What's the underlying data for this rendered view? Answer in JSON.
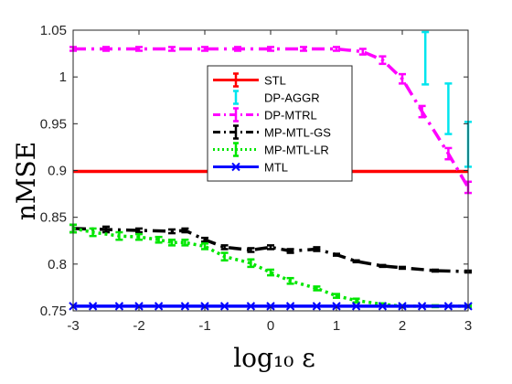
{
  "chart_data": {
    "type": "line",
    "title": "",
    "xlabel": "log₁₀ ε",
    "ylabel": "nMSE",
    "xlim": [
      -3,
      3
    ],
    "ylim": [
      0.75,
      1.05
    ],
    "xticks": [
      "-3",
      "-2",
      "-1",
      "0",
      "1",
      "2",
      "3"
    ],
    "yticks": [
      "0.75",
      "0.8",
      "0.85",
      "0.9",
      "0.95",
      "1",
      "1.05"
    ],
    "legend_position": "center",
    "grid": false,
    "series": [
      {
        "name": "STL",
        "color": "#ff0000",
        "dash": "solid",
        "marker": "none",
        "points": [
          [
            -3,
            0.899
          ],
          [
            3,
            0.899
          ]
        ]
      },
      {
        "name": "DP-AGGR",
        "color": "#00e5ee",
        "dash": "none",
        "marker": "errorbar",
        "points": [
          [
            2.35,
            1.02
          ],
          [
            2.7,
            0.966
          ],
          [
            3.0,
            0.928
          ]
        ],
        "err": [
          0.028,
          0.027,
          0.024
        ]
      },
      {
        "name": "DP-MTRL",
        "color": "#ff00ff",
        "dash": "dashdot",
        "marker": "errorbar",
        "points": [
          [
            -3,
            1.03
          ],
          [
            -2.5,
            1.03
          ],
          [
            -2,
            1.03
          ],
          [
            -1.5,
            1.03
          ],
          [
            -1,
            1.03
          ],
          [
            -0.5,
            1.03
          ],
          [
            0,
            1.03
          ],
          [
            0.5,
            1.03
          ],
          [
            1.0,
            1.03
          ],
          [
            1.4,
            1.027
          ],
          [
            1.7,
            1.018
          ],
          [
            2.0,
            0.998
          ],
          [
            2.3,
            0.963
          ],
          [
            2.7,
            0.918
          ],
          [
            3.0,
            0.882
          ]
        ],
        "err": [
          0.002,
          0.002,
          0.002,
          0.002,
          0.002,
          0.002,
          0.002,
          0.002,
          0.002,
          0.003,
          0.004,
          0.005,
          0.006,
          0.006,
          0.006
        ]
      },
      {
        "name": "MP-MTL-GS",
        "color": "#000000",
        "dash": "dashdot",
        "marker": "errorbar",
        "points": [
          [
            -3,
            0.838
          ],
          [
            -2.5,
            0.837
          ],
          [
            -2,
            0.836
          ],
          [
            -1.5,
            0.835
          ],
          [
            -1.3,
            0.836
          ],
          [
            -1,
            0.826
          ],
          [
            -0.7,
            0.818
          ],
          [
            -0.3,
            0.815
          ],
          [
            0,
            0.818
          ],
          [
            0.3,
            0.814
          ],
          [
            0.7,
            0.816
          ],
          [
            1.0,
            0.81
          ],
          [
            1.3,
            0.803
          ],
          [
            1.7,
            0.798
          ],
          [
            2.0,
            0.796
          ],
          [
            2.5,
            0.793
          ],
          [
            3.0,
            0.792
          ]
        ],
        "err": [
          0.004,
          0.003,
          0.002,
          0.002,
          0.002,
          0.002,
          0.002,
          0.002,
          0.002,
          0.002,
          0.002,
          0.001,
          0.001,
          0.001,
          0.001,
          0.001,
          0.001
        ]
      },
      {
        "name": "MP-MTL-LR",
        "color": "#00e600",
        "dash": "dotted",
        "marker": "errorbar",
        "points": [
          [
            -3,
            0.838
          ],
          [
            -2.7,
            0.834
          ],
          [
            -2.3,
            0.83
          ],
          [
            -2,
            0.829
          ],
          [
            -1.7,
            0.826
          ],
          [
            -1.5,
            0.823
          ],
          [
            -1.3,
            0.823
          ],
          [
            -1,
            0.819
          ],
          [
            -0.7,
            0.808
          ],
          [
            -0.3,
            0.801
          ],
          [
            0,
            0.791
          ],
          [
            0.3,
            0.782
          ],
          [
            0.7,
            0.774
          ],
          [
            1.0,
            0.766
          ],
          [
            1.3,
            0.761
          ],
          [
            1.7,
            0.757
          ],
          [
            2.0,
            0.755
          ],
          [
            2.5,
            0.755
          ],
          [
            3.0,
            0.755
          ]
        ],
        "err": [
          0.004,
          0.004,
          0.004,
          0.003,
          0.003,
          0.003,
          0.003,
          0.003,
          0.004,
          0.004,
          0.003,
          0.003,
          0.002,
          0.002,
          0.002,
          0.001,
          0.001,
          0.001,
          0.001
        ]
      },
      {
        "name": "MTL",
        "color": "#0000ff",
        "dash": "solid",
        "marker": "x",
        "points": [
          [
            -3,
            0.755
          ],
          [
            -2.7,
            0.755
          ],
          [
            -2.3,
            0.755
          ],
          [
            -2,
            0.755
          ],
          [
            -1.7,
            0.755
          ],
          [
            -1.3,
            0.755
          ],
          [
            -1,
            0.755
          ],
          [
            -0.7,
            0.755
          ],
          [
            -0.3,
            0.755
          ],
          [
            0,
            0.755
          ],
          [
            0.3,
            0.755
          ],
          [
            0.7,
            0.755
          ],
          [
            1.0,
            0.755
          ],
          [
            1.3,
            0.755
          ],
          [
            1.7,
            0.755
          ],
          [
            2.0,
            0.755
          ],
          [
            2.3,
            0.755
          ],
          [
            2.7,
            0.755
          ],
          [
            3.0,
            0.755
          ]
        ]
      }
    ]
  }
}
